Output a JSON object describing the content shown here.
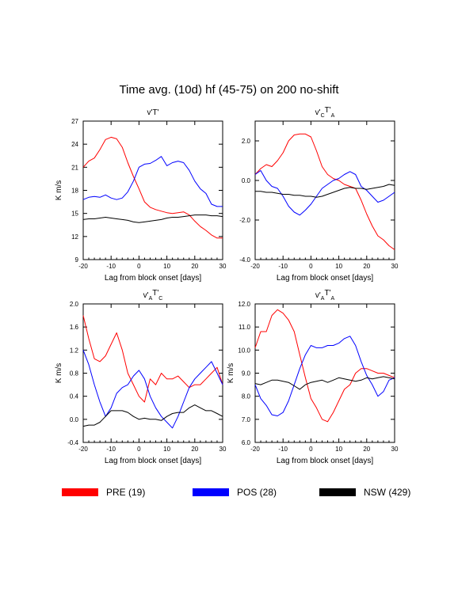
{
  "title": "Time avg. (10d) hf (45-75) on 200 no-shift",
  "colors": {
    "PRE": "#ff0000",
    "POS": "#0000ff",
    "NSW": "#000000"
  },
  "legend": [
    {
      "key": "PRE",
      "label": "PRE (19)",
      "color": "#ff0000"
    },
    {
      "key": "POS",
      "label": "POS (28)",
      "color": "#0000ff"
    },
    {
      "key": "NSW",
      "label": "NSW (429)",
      "color": "#000000"
    }
  ],
  "chart_data": [
    {
      "type": "line",
      "title": {
        "main": "v'T'",
        "sub1": "",
        "sup1": "",
        "mid": "",
        "sub2": "",
        "sup2": "",
        "end": ""
      },
      "xlabel": "Lag from block onset [days]",
      "ylabel": "K m/s",
      "xlim": [
        -20,
        30
      ],
      "ylim": [
        9,
        27
      ],
      "xticks": [
        "-20",
        "-10",
        "0",
        "10",
        "20",
        "30"
      ],
      "yticks": [
        "9",
        "12",
        "15",
        "18",
        "21",
        "24",
        "27"
      ],
      "series": [
        {
          "name": "PRE",
          "color": "#ff0000",
          "x": [
            -20,
            -18,
            -16,
            -14,
            -12,
            -10,
            -8,
            -6,
            -4,
            -2,
            0,
            2,
            4,
            6,
            8,
            10,
            12,
            14,
            16,
            18,
            20,
            22,
            24,
            26,
            28,
            30
          ],
          "y": [
            21.0,
            21.8,
            22.2,
            23.3,
            24.6,
            24.9,
            24.7,
            23.6,
            21.6,
            19.8,
            18.2,
            16.5,
            15.8,
            15.5,
            15.3,
            15.1,
            15.0,
            15.1,
            15.2,
            14.8,
            14.0,
            13.3,
            12.8,
            12.2,
            11.8,
            11.8
          ]
        },
        {
          "name": "POS",
          "color": "#0000ff",
          "x": [
            -20,
            -18,
            -16,
            -14,
            -12,
            -10,
            -8,
            -6,
            -4,
            -2,
            0,
            2,
            4,
            6,
            8,
            10,
            12,
            14,
            16,
            18,
            20,
            22,
            24,
            26,
            28,
            30
          ],
          "y": [
            16.8,
            17.1,
            17.2,
            17.1,
            17.4,
            17.0,
            16.8,
            17.0,
            17.8,
            19.2,
            21.0,
            21.4,
            21.5,
            21.9,
            22.4,
            21.2,
            21.6,
            21.8,
            21.6,
            20.6,
            19.2,
            18.2,
            17.6,
            16.2,
            15.9,
            15.9
          ]
        },
        {
          "name": "NSW",
          "color": "#000000",
          "x": [
            -20,
            -18,
            -16,
            -14,
            -12,
            -10,
            -8,
            -6,
            -4,
            -2,
            0,
            2,
            4,
            6,
            8,
            10,
            12,
            14,
            16,
            18,
            20,
            22,
            24,
            26,
            28,
            30
          ],
          "y": [
            14.2,
            14.3,
            14.3,
            14.4,
            14.5,
            14.4,
            14.3,
            14.2,
            14.1,
            13.9,
            13.8,
            13.9,
            14.0,
            14.1,
            14.2,
            14.4,
            14.5,
            14.5,
            14.6,
            14.7,
            14.8,
            14.8,
            14.8,
            14.7,
            14.7,
            14.6
          ]
        }
      ]
    },
    {
      "type": "line",
      "title": {
        "main": "v'",
        "sub1": "C",
        "sup1": "",
        "mid": "T'",
        "sub2": "A",
        "sup2": "",
        "end": ""
      },
      "xlabel": "Lag from block onset [days]",
      "ylabel": "",
      "xlim": [
        -20,
        30
      ],
      "ylim": [
        -4.0,
        3.0
      ],
      "xticks": [
        "-20",
        "-10",
        "0",
        "10",
        "20",
        "30"
      ],
      "yticks": [
        "-4.0",
        "-2.0",
        "0.0",
        "2.0"
      ],
      "ytickvals": [
        -4,
        -2,
        0,
        2
      ],
      "series": [
        {
          "name": "PRE",
          "color": "#ff0000",
          "x": [
            -20,
            -18,
            -16,
            -14,
            -12,
            -10,
            -8,
            -6,
            -4,
            -2,
            0,
            2,
            4,
            6,
            8,
            10,
            12,
            14,
            16,
            18,
            20,
            22,
            24,
            26,
            28,
            30
          ],
          "y": [
            0.3,
            0.6,
            0.8,
            0.7,
            1.0,
            1.4,
            2.0,
            2.3,
            2.35,
            2.35,
            2.2,
            1.5,
            0.7,
            0.3,
            0.1,
            0.0,
            -0.2,
            -0.3,
            -0.4,
            -1.0,
            -1.7,
            -2.3,
            -2.8,
            -3.0,
            -3.3,
            -3.5
          ]
        },
        {
          "name": "POS",
          "color": "#0000ff",
          "x": [
            -20,
            -18,
            -16,
            -14,
            -12,
            -10,
            -8,
            -6,
            -4,
            -2,
            0,
            2,
            4,
            6,
            8,
            10,
            12,
            14,
            16,
            18,
            20,
            22,
            24,
            26,
            28,
            30
          ],
          "y": [
            0.3,
            0.5,
            0.0,
            -0.3,
            -0.4,
            -0.8,
            -1.3,
            -1.6,
            -1.75,
            -1.5,
            -1.2,
            -0.8,
            -0.4,
            -0.2,
            0.0,
            0.1,
            0.3,
            0.45,
            0.3,
            -0.3,
            -0.5,
            -0.8,
            -1.1,
            -1.0,
            -0.8,
            -0.6
          ]
        },
        {
          "name": "NSW",
          "color": "#000000",
          "x": [
            -20,
            -18,
            -16,
            -14,
            -12,
            -10,
            -8,
            -6,
            -4,
            -2,
            0,
            2,
            4,
            6,
            8,
            10,
            12,
            14,
            16,
            18,
            20,
            22,
            24,
            26,
            28,
            30
          ],
          "y": [
            -0.55,
            -0.55,
            -0.6,
            -0.6,
            -0.65,
            -0.7,
            -0.7,
            -0.75,
            -0.75,
            -0.8,
            -0.8,
            -0.85,
            -0.8,
            -0.7,
            -0.6,
            -0.5,
            -0.4,
            -0.35,
            -0.4,
            -0.4,
            -0.45,
            -0.4,
            -0.35,
            -0.3,
            -0.2,
            -0.25
          ]
        }
      ]
    },
    {
      "type": "line",
      "title": {
        "main": "v'",
        "sub1": "A",
        "sup1": "",
        "mid": "T'",
        "sub2": "C",
        "sup2": "",
        "end": ""
      },
      "xlabel": "Lag from block onset [days]",
      "ylabel": "K m/s",
      "xlim": [
        -20,
        30
      ],
      "ylim": [
        -0.4,
        2.0
      ],
      "xticks": [
        "-20",
        "-10",
        "0",
        "10",
        "20",
        "30"
      ],
      "yticks": [
        "-0.4",
        "0.0",
        "0.4",
        "0.8",
        "1.2",
        "1.6",
        "2.0"
      ],
      "ytickvals": [
        -0.4,
        0.0,
        0.4,
        0.8,
        1.2,
        1.6,
        2.0
      ],
      "series": [
        {
          "name": "PRE",
          "color": "#ff0000",
          "x": [
            -20,
            -18,
            -16,
            -14,
            -12,
            -10,
            -8,
            -6,
            -4,
            -2,
            0,
            2,
            4,
            6,
            8,
            10,
            12,
            14,
            16,
            18,
            20,
            22,
            24,
            26,
            28,
            30
          ],
          "y": [
            1.8,
            1.4,
            1.05,
            1.0,
            1.1,
            1.3,
            1.5,
            1.2,
            0.8,
            0.6,
            0.4,
            0.3,
            0.7,
            0.6,
            0.8,
            0.7,
            0.7,
            0.75,
            0.65,
            0.55,
            0.6,
            0.6,
            0.7,
            0.8,
            0.9,
            0.6
          ]
        },
        {
          "name": "POS",
          "color": "#0000ff",
          "x": [
            -20,
            -18,
            -16,
            -14,
            -12,
            -10,
            -8,
            -6,
            -4,
            -2,
            0,
            2,
            4,
            6,
            8,
            10,
            12,
            14,
            16,
            18,
            20,
            22,
            24,
            26,
            28,
            30
          ],
          "y": [
            1.2,
            0.95,
            0.6,
            0.3,
            0.05,
            0.2,
            0.45,
            0.55,
            0.6,
            0.75,
            0.85,
            0.7,
            0.4,
            0.2,
            0.05,
            -0.05,
            -0.15,
            0.05,
            0.3,
            0.55,
            0.7,
            0.8,
            0.9,
            1.0,
            0.8,
            0.6
          ]
        },
        {
          "name": "NSW",
          "color": "#000000",
          "x": [
            -20,
            -18,
            -16,
            -14,
            -12,
            -10,
            -8,
            -6,
            -4,
            -2,
            0,
            2,
            4,
            6,
            8,
            10,
            12,
            14,
            16,
            18,
            20,
            22,
            24,
            26,
            28,
            30
          ],
          "y": [
            -0.12,
            -0.1,
            -0.1,
            -0.05,
            0.05,
            0.15,
            0.15,
            0.15,
            0.12,
            0.05,
            0.0,
            0.02,
            0.0,
            0.0,
            -0.02,
            0.05,
            0.1,
            0.12,
            0.12,
            0.2,
            0.25,
            0.2,
            0.15,
            0.15,
            0.1,
            0.05
          ]
        }
      ]
    },
    {
      "type": "line",
      "title": {
        "main": "v'",
        "sub1": "A",
        "sup1": "",
        "mid": "T'",
        "sub2": "A",
        "sup2": "",
        "end": ""
      },
      "xlabel": "Lag from block onset [days]",
      "ylabel": "K m/s",
      "xlim": [
        -20,
        30
      ],
      "ylim": [
        6.0,
        12.0
      ],
      "xticks": [
        "-20",
        "-10",
        "0",
        "10",
        "20",
        "30"
      ],
      "yticks": [
        "6.0",
        "7.0",
        "8.0",
        "9.0",
        "10.0",
        "11.0",
        "12.0"
      ],
      "ytickvals": [
        6,
        7,
        8,
        9,
        10,
        11,
        12
      ],
      "series": [
        {
          "name": "PRE",
          "color": "#ff0000",
          "x": [
            -20,
            -18,
            -16,
            -14,
            -12,
            -10,
            -8,
            -6,
            -4,
            -2,
            0,
            2,
            4,
            6,
            8,
            10,
            12,
            14,
            16,
            18,
            20,
            22,
            24,
            26,
            28,
            30
          ],
          "y": [
            10.1,
            10.8,
            10.8,
            11.5,
            11.75,
            11.6,
            11.3,
            10.8,
            9.8,
            8.8,
            7.9,
            7.5,
            7.0,
            6.9,
            7.3,
            7.8,
            8.3,
            8.5,
            9.0,
            9.2,
            9.2,
            9.1,
            9.0,
            9.0,
            8.9,
            8.8
          ]
        },
        {
          "name": "POS",
          "color": "#0000ff",
          "x": [
            -20,
            -18,
            -16,
            -14,
            -12,
            -10,
            -8,
            -6,
            -4,
            -2,
            0,
            2,
            4,
            6,
            8,
            10,
            12,
            14,
            16,
            18,
            20,
            22,
            24,
            26,
            28,
            30
          ],
          "y": [
            8.5,
            7.9,
            7.6,
            7.2,
            7.15,
            7.3,
            7.8,
            8.5,
            9.2,
            9.8,
            10.2,
            10.1,
            10.1,
            10.2,
            10.2,
            10.3,
            10.5,
            10.6,
            10.2,
            9.5,
            8.9,
            8.5,
            8.0,
            8.2,
            8.7,
            8.8
          ]
        },
        {
          "name": "NSW",
          "color": "#000000",
          "x": [
            -20,
            -18,
            -16,
            -14,
            -12,
            -10,
            -8,
            -6,
            -4,
            -2,
            0,
            2,
            4,
            6,
            8,
            10,
            12,
            14,
            16,
            18,
            20,
            22,
            24,
            26,
            28,
            30
          ],
          "y": [
            8.55,
            8.5,
            8.6,
            8.7,
            8.7,
            8.65,
            8.6,
            8.45,
            8.3,
            8.5,
            8.6,
            8.65,
            8.7,
            8.6,
            8.7,
            8.8,
            8.75,
            8.7,
            8.65,
            8.7,
            8.8,
            8.75,
            8.8,
            8.85,
            8.8,
            8.75
          ]
        }
      ]
    }
  ]
}
